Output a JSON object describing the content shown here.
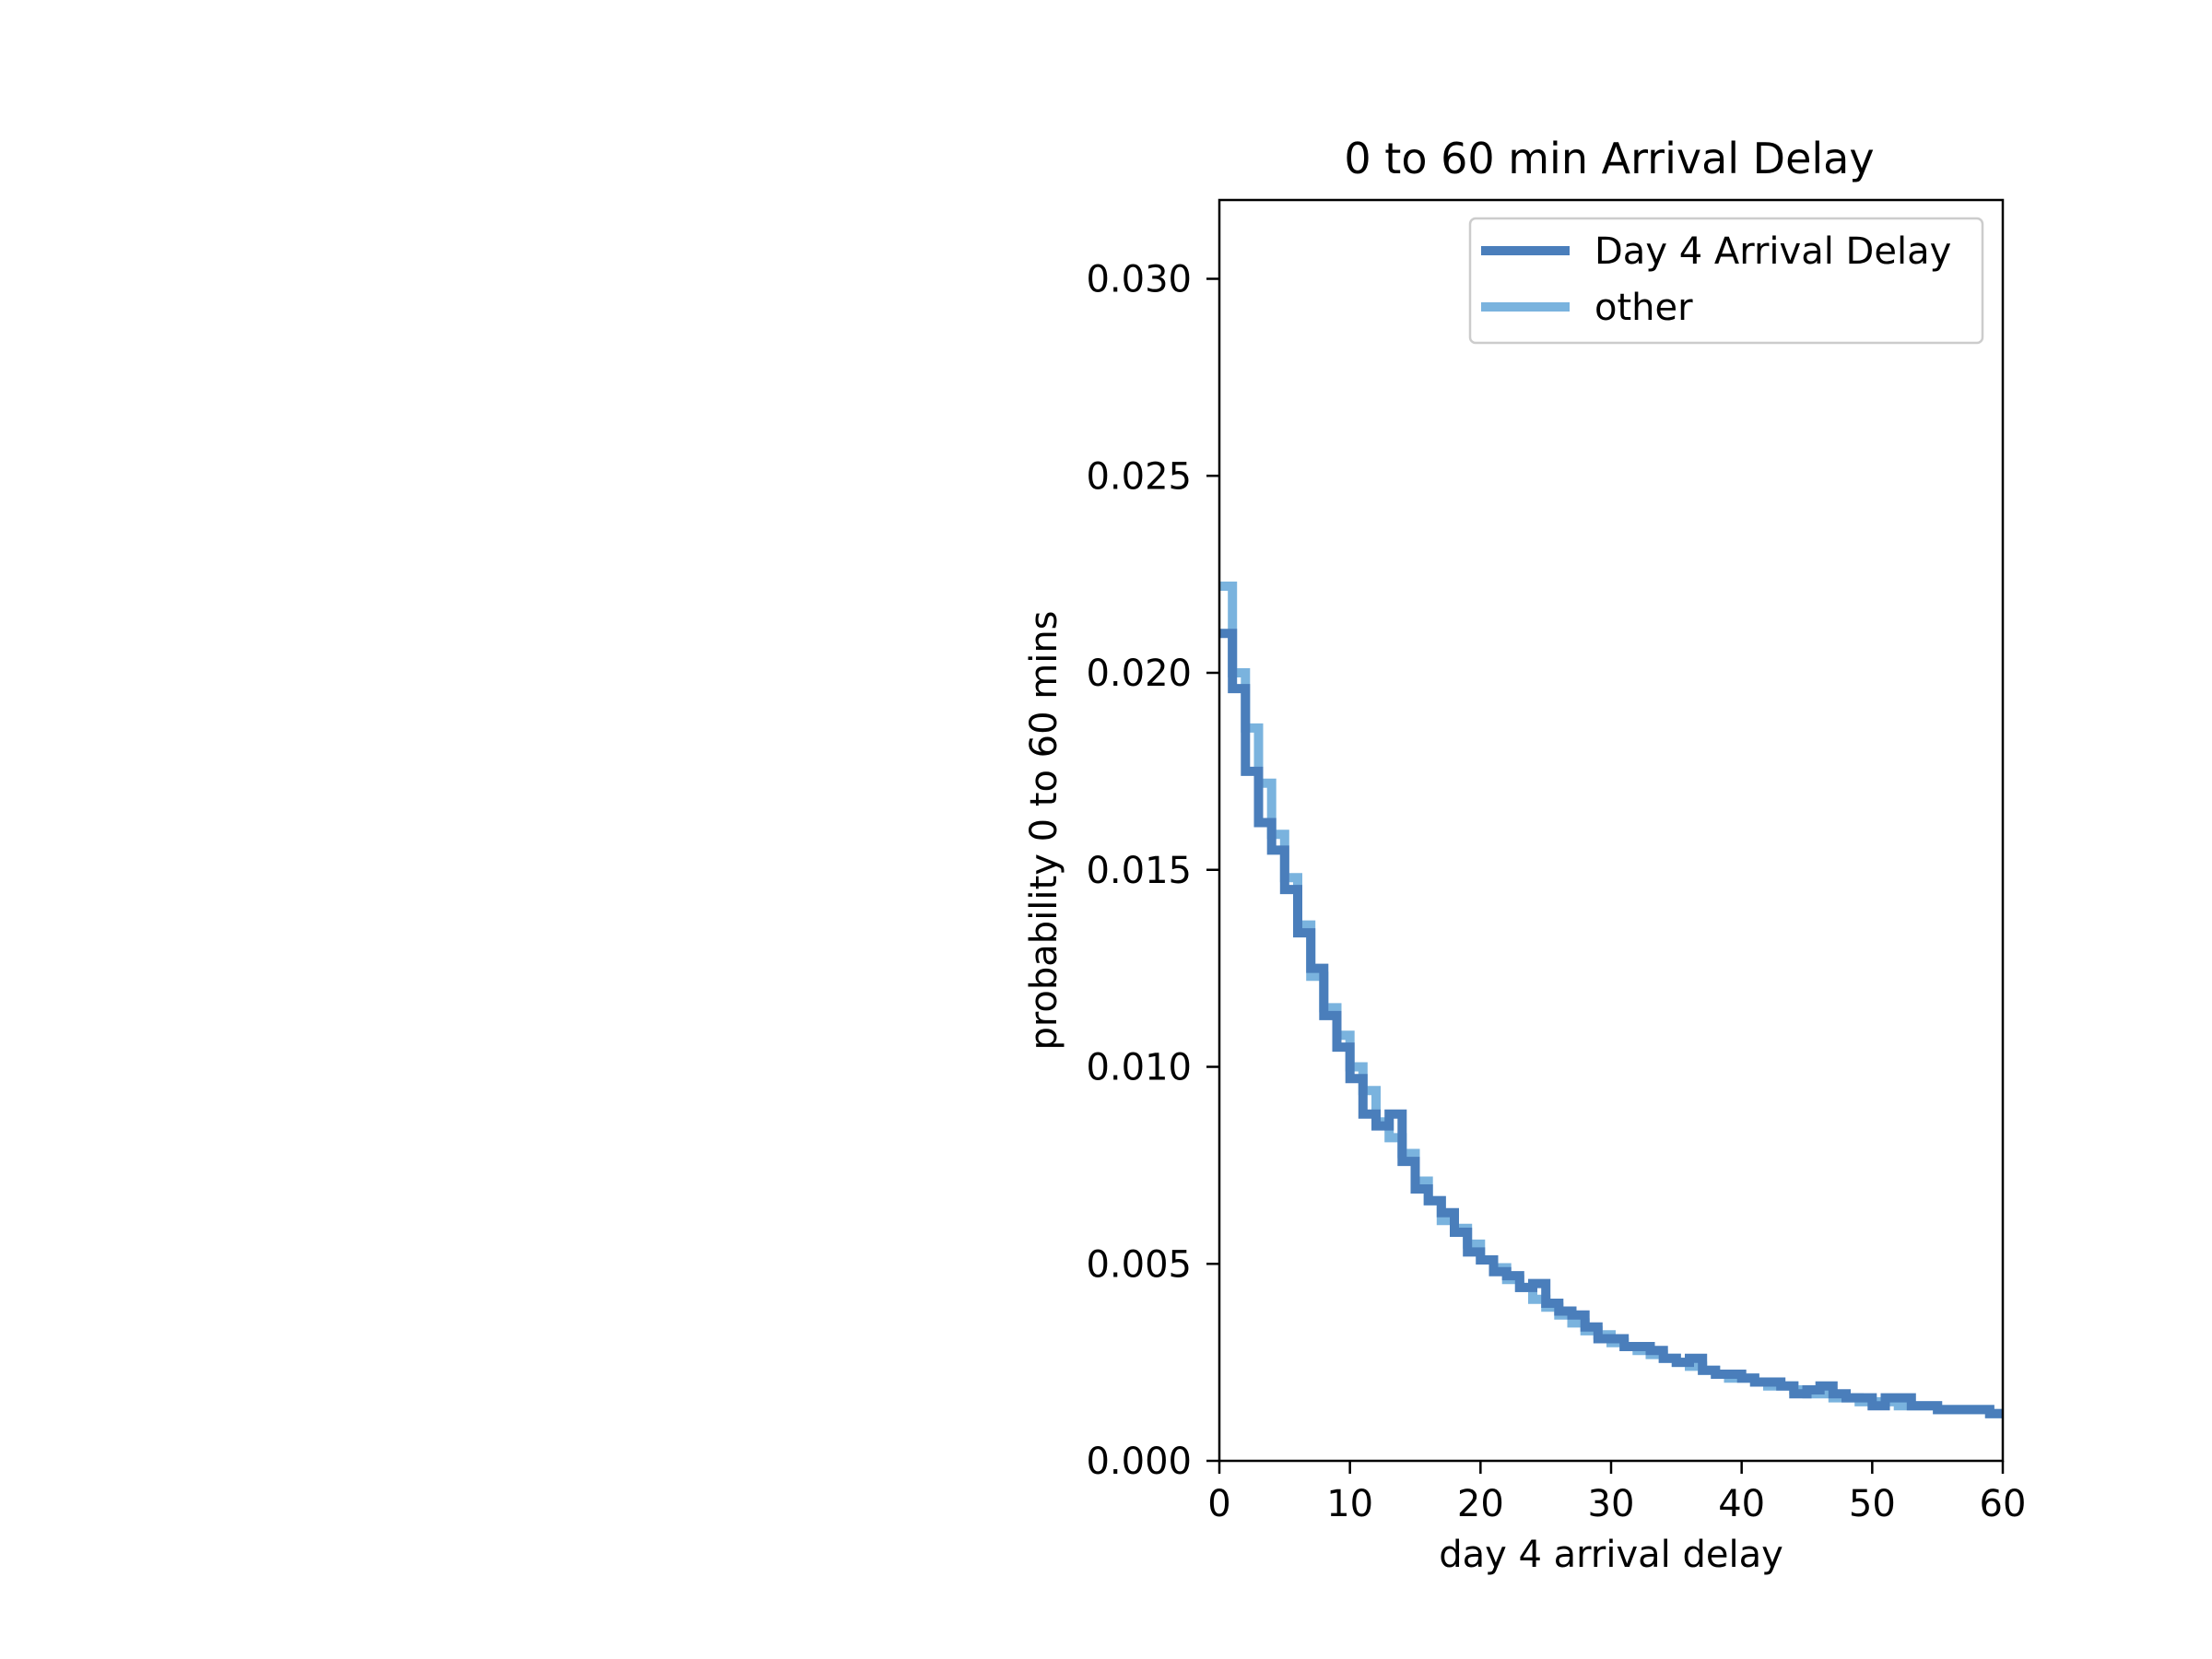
{
  "chart_data": {
    "type": "line",
    "title": "0 to 60 min Arrival Delay",
    "xlabel": "day 4 arrival delay",
    "ylabel": "probability 0 to 60 mins",
    "xlim": [
      0,
      60
    ],
    "ylim": [
      0,
      0.032
    ],
    "x_ticks": [
      0,
      10,
      20,
      30,
      40,
      50,
      60
    ],
    "x_tick_labels": [
      "0",
      "10",
      "20",
      "30",
      "40",
      "50",
      "60"
    ],
    "y_ticks": [
      0,
      0.005,
      0.01,
      0.015,
      0.02,
      0.025,
      0.03
    ],
    "y_tick_labels": [
      "0.000",
      "0.005",
      "0.010",
      "0.015",
      "0.020",
      "0.025",
      "0.030"
    ],
    "grid": false,
    "legend_position": "top-right",
    "drawstyle": "steps-post",
    "bin_width": 1,
    "x": [
      0,
      1,
      2,
      3,
      4,
      5,
      6,
      7,
      8,
      9,
      10,
      11,
      12,
      13,
      14,
      15,
      16,
      17,
      18,
      19,
      20,
      21,
      22,
      23,
      24,
      25,
      26,
      27,
      28,
      29,
      30,
      31,
      32,
      33,
      34,
      35,
      36,
      37,
      38,
      39,
      40,
      41,
      42,
      43,
      44,
      45,
      46,
      47,
      48,
      49,
      50,
      51,
      52,
      53,
      54,
      55,
      56,
      57,
      58,
      59
    ],
    "series": [
      {
        "name": "Day 4 Arrival Delay",
        "color": "#4a7ebb",
        "values": [
          0.021,
          0.0196,
          0.0175,
          0.0162,
          0.0155,
          0.0145,
          0.0134,
          0.0125,
          0.0113,
          0.0105,
          0.0097,
          0.0088,
          0.0085,
          0.0088,
          0.0076,
          0.0069,
          0.0066,
          0.0063,
          0.0058,
          0.0053,
          0.0051,
          0.0048,
          0.0047,
          0.0044,
          0.0045,
          0.004,
          0.0038,
          0.0037,
          0.0034,
          0.0031,
          0.0031,
          0.0029,
          0.0029,
          0.0028,
          0.0026,
          0.0025,
          0.0026,
          0.0023,
          0.0022,
          0.0022,
          0.0021,
          0.002,
          0.002,
          0.0019,
          0.0017,
          0.0018,
          0.0019,
          0.0017,
          0.0016,
          0.0016,
          0.0014,
          0.0016,
          0.0016,
          0.0014,
          0.0014,
          0.0013,
          0.0013,
          0.0013,
          0.0013,
          0.0012
        ]
      },
      {
        "name": "other",
        "color": "#7ab3de",
        "values": [
          0.0222,
          0.02,
          0.0186,
          0.0172,
          0.0159,
          0.0148,
          0.0136,
          0.0123,
          0.0115,
          0.0108,
          0.01,
          0.0094,
          0.0086,
          0.0082,
          0.0078,
          0.0071,
          0.0066,
          0.0061,
          0.0059,
          0.0055,
          0.0051,
          0.0049,
          0.0046,
          0.0044,
          0.0041,
          0.0039,
          0.0037,
          0.0035,
          0.0033,
          0.0032,
          0.003,
          0.0029,
          0.0028,
          0.0027,
          0.0026,
          0.0025,
          0.0024,
          0.0023,
          0.0022,
          0.0021,
          0.0021,
          0.002,
          0.0019,
          0.0019,
          0.0018,
          0.0017,
          0.0017,
          0.0016,
          0.0016,
          0.0015,
          0.0015,
          0.0015,
          0.0014,
          0.0014,
          0.0014,
          0.0013,
          0.0013,
          0.0013,
          0.0013,
          0.0012
        ]
      }
    ]
  }
}
